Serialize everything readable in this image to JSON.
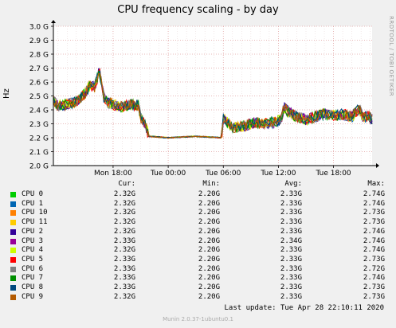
{
  "chart_data": {
    "type": "line",
    "title": "CPU frequency scaling - by day",
    "ylabel": "Hz",
    "ylim": [
      2.0,
      3.0
    ],
    "y_ticks": [
      "2.0 G",
      "2.1 G",
      "2.2 G",
      "2.3 G",
      "2.4 G",
      "2.5 G",
      "2.6 G",
      "2.7 G",
      "2.8 G",
      "2.9 G",
      "3.0 G"
    ],
    "x_ticks": [
      "Mon 18:00",
      "Tue 00:00",
      "Tue 06:00",
      "Tue 12:00",
      "Tue 18:00"
    ],
    "x_range_hours": [
      11.5,
      46.2
    ],
    "x_tick_hours": [
      18,
      24,
      30,
      36,
      42
    ],
    "grid": true,
    "profile": [
      [
        11.5,
        2.47
      ],
      [
        12.0,
        2.43
      ],
      [
        13.0,
        2.44
      ],
      [
        14.0,
        2.46
      ],
      [
        15.0,
        2.52
      ],
      [
        15.5,
        2.58
      ],
      [
        16.0,
        2.56
      ],
      [
        16.5,
        2.68
      ],
      [
        17.0,
        2.49
      ],
      [
        17.5,
        2.45
      ],
      [
        18.0,
        2.44
      ],
      [
        19.0,
        2.42
      ],
      [
        20.0,
        2.44
      ],
      [
        20.8,
        2.43
      ],
      [
        21.0,
        2.34
      ],
      [
        21.5,
        2.3
      ],
      [
        21.9,
        2.21
      ],
      [
        24.0,
        2.2
      ],
      [
        27.0,
        2.21
      ],
      [
        29.8,
        2.2
      ],
      [
        30.0,
        2.34
      ],
      [
        30.5,
        2.31
      ],
      [
        31.0,
        2.27
      ],
      [
        32.5,
        2.29
      ],
      [
        33.5,
        2.31
      ],
      [
        34.5,
        2.3
      ],
      [
        35.5,
        2.31
      ],
      [
        36.3,
        2.33
      ],
      [
        36.6,
        2.42
      ],
      [
        37.0,
        2.39
      ],
      [
        38.0,
        2.35
      ],
      [
        39.0,
        2.33
      ],
      [
        40.0,
        2.35
      ],
      [
        41.0,
        2.37
      ],
      [
        42.0,
        2.36
      ],
      [
        43.0,
        2.37
      ],
      [
        44.0,
        2.35
      ],
      [
        44.8,
        2.41
      ],
      [
        45.3,
        2.34
      ],
      [
        45.8,
        2.36
      ],
      [
        46.2,
        2.33
      ]
    ],
    "series": [
      {
        "name": "CPU 0",
        "color": "#00cc00",
        "cur": "2.32G",
        "min": "2.20G",
        "avg": "2.33G",
        "max": "2.74G"
      },
      {
        "name": "CPU 1",
        "color": "#0066b3",
        "cur": "2.32G",
        "min": "2.20G",
        "avg": "2.33G",
        "max": "2.74G"
      },
      {
        "name": "CPU 10",
        "color": "#ff8000",
        "cur": "2.32G",
        "min": "2.20G",
        "avg": "2.33G",
        "max": "2.73G"
      },
      {
        "name": "CPU 11",
        "color": "#ffcc00",
        "cur": "2.32G",
        "min": "2.20G",
        "avg": "2.33G",
        "max": "2.73G"
      },
      {
        "name": "CPU 2",
        "color": "#330099",
        "cur": "2.32G",
        "min": "2.20G",
        "avg": "2.33G",
        "max": "2.74G"
      },
      {
        "name": "CPU 3",
        "color": "#990099",
        "cur": "2.33G",
        "min": "2.20G",
        "avg": "2.34G",
        "max": "2.74G"
      },
      {
        "name": "CPU 4",
        "color": "#ccff00",
        "cur": "2.32G",
        "min": "2.20G",
        "avg": "2.33G",
        "max": "2.74G"
      },
      {
        "name": "CPU 5",
        "color": "#ff0000",
        "cur": "2.33G",
        "min": "2.20G",
        "avg": "2.33G",
        "max": "2.73G"
      },
      {
        "name": "CPU 6",
        "color": "#808080",
        "cur": "2.33G",
        "min": "2.20G",
        "avg": "2.33G",
        "max": "2.72G"
      },
      {
        "name": "CPU 7",
        "color": "#008f00",
        "cur": "2.33G",
        "min": "2.20G",
        "avg": "2.33G",
        "max": "2.74G"
      },
      {
        "name": "CPU 8",
        "color": "#00487d",
        "cur": "2.33G",
        "min": "2.20G",
        "avg": "2.33G",
        "max": "2.73G"
      },
      {
        "name": "CPU 9",
        "color": "#b35a00",
        "cur": "2.32G",
        "min": "2.20G",
        "avg": "2.33G",
        "max": "2.73G"
      }
    ]
  },
  "legend_headers": {
    "cur": "Cur:",
    "min": "Min:",
    "avg": "Avg:",
    "max": "Max:"
  },
  "last_update": "Last update: Tue Apr 28 22:10:11 2020",
  "side_text": "RRDTOOL / TOBI OETIKER",
  "footer": "Munin 2.0.37-1ubuntu0.1"
}
